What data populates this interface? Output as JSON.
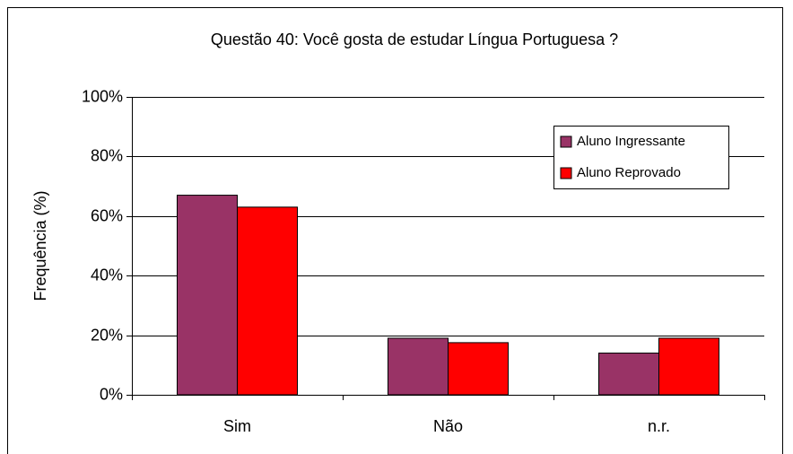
{
  "chart_data": {
    "type": "bar",
    "title": "Questão 40: Você gosta de estudar Língua Portuguesa ?",
    "y_label": "Frequência (%)",
    "categories": [
      "Sim",
      "Não",
      "n.r."
    ],
    "series": [
      {
        "name": "Aluno Ingressante",
        "color": "#993366",
        "values": [
          67,
          19,
          14
        ]
      },
      {
        "name": "Aluno Reprovado",
        "color": "#ff0000",
        "values": [
          63,
          17.5,
          19
        ]
      }
    ],
    "ylim": [
      0,
      100
    ],
    "yticks": [
      {
        "value": 0,
        "label": "0%"
      },
      {
        "value": 20,
        "label": "20%"
      },
      {
        "value": 40,
        "label": "40%"
      },
      {
        "value": 60,
        "label": "60%"
      },
      {
        "value": 80,
        "label": "80%"
      },
      {
        "value": 100,
        "label": "100%"
      }
    ],
    "grid": true,
    "legend": "upper right"
  }
}
